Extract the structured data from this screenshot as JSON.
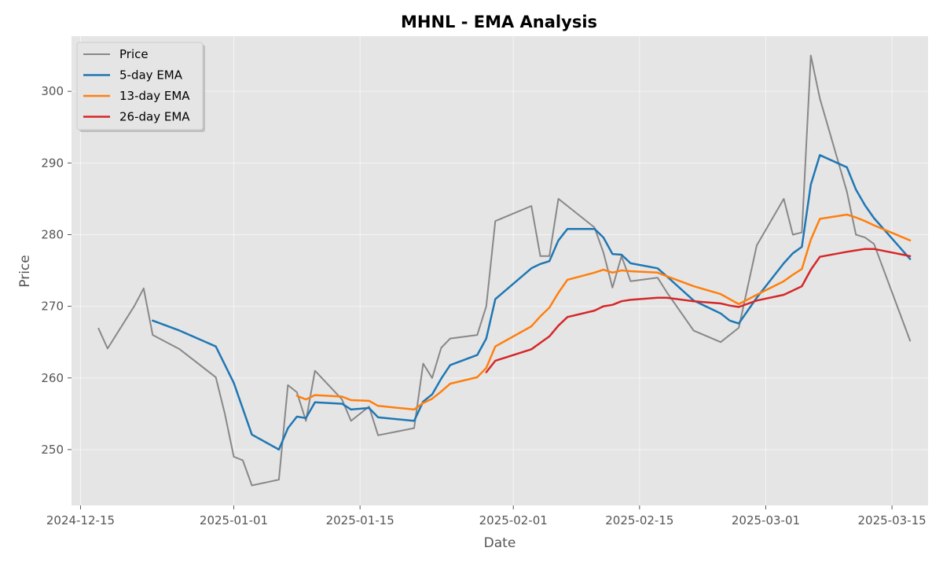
{
  "chart_data": {
    "type": "line",
    "title": "MHNL - EMA Analysis",
    "xlabel": "Date",
    "ylabel": "Price",
    "x_type": "date",
    "xlim": [
      "2024-12-14",
      "2025-03-19"
    ],
    "ylim": [
      242.2,
      307.7
    ],
    "x_ticks": [
      "2024-12-15",
      "2025-01-01",
      "2025-01-15",
      "2025-02-01",
      "2025-02-15",
      "2025-03-01",
      "2025-03-15"
    ],
    "x_tick_labels": [
      "2024-12-15",
      "2025-01-01",
      "2025-01-15",
      "2025-02-01",
      "2025-02-15",
      "2025-03-01",
      "2025-03-15"
    ],
    "y_ticks": [
      250,
      260,
      270,
      280,
      290,
      300
    ],
    "y_tick_labels": [
      "250",
      "260",
      "270",
      "280",
      "290",
      "300"
    ],
    "grid": true,
    "background": "#e5e5e5",
    "legend": {
      "position": "upper-left"
    },
    "series": [
      {
        "name": "Price",
        "color": "#888888",
        "points": [
          [
            "2024-12-17",
            266.9
          ],
          [
            "2024-12-18",
            264.1
          ],
          [
            "2024-12-21",
            270.1
          ],
          [
            "2024-12-22",
            272.5
          ],
          [
            "2024-12-23",
            266.0
          ],
          [
            "2024-12-26",
            264.0
          ],
          [
            "2024-12-30",
            260.1
          ],
          [
            "2024-12-31",
            255.0
          ],
          [
            "2025-01-01",
            249.0
          ],
          [
            "2025-01-02",
            248.5
          ],
          [
            "2025-01-03",
            245.0
          ],
          [
            "2025-01-06",
            245.8
          ],
          [
            "2025-01-07",
            259.0
          ],
          [
            "2025-01-08",
            258.0
          ],
          [
            "2025-01-09",
            254.0
          ],
          [
            "2025-01-10",
            261.0
          ],
          [
            "2025-01-13",
            257.0
          ],
          [
            "2025-01-14",
            254.0
          ],
          [
            "2025-01-16",
            256.0
          ],
          [
            "2025-01-17",
            252.0
          ],
          [
            "2025-01-21",
            253.0
          ],
          [
            "2025-01-22",
            262.0
          ],
          [
            "2025-01-23",
            260.0
          ],
          [
            "2025-01-24",
            264.2
          ],
          [
            "2025-01-25",
            265.5
          ],
          [
            "2025-01-28",
            266.0
          ],
          [
            "2025-01-29",
            270.0
          ],
          [
            "2025-01-30",
            281.9
          ],
          [
            "2025-02-03",
            284.0
          ],
          [
            "2025-02-04",
            277.0
          ],
          [
            "2025-02-05",
            277.0
          ],
          [
            "2025-02-06",
            285.0
          ],
          [
            "2025-02-07",
            284.0
          ],
          [
            "2025-02-10",
            281.0
          ],
          [
            "2025-02-11",
            277.5
          ],
          [
            "2025-02-12",
            272.6
          ],
          [
            "2025-02-13",
            277.0
          ],
          [
            "2025-02-14",
            273.5
          ],
          [
            "2025-02-17",
            274.0
          ],
          [
            "2025-02-18",
            272.0
          ],
          [
            "2025-02-21",
            266.6
          ],
          [
            "2025-02-24",
            265.0
          ],
          [
            "2025-02-26",
            267.0
          ],
          [
            "2025-02-28",
            278.5
          ],
          [
            "2025-03-03",
            285.0
          ],
          [
            "2025-03-04",
            280.0
          ],
          [
            "2025-03-05",
            280.3
          ],
          [
            "2025-03-06",
            305.0
          ],
          [
            "2025-03-07",
            299.0
          ],
          [
            "2025-03-10",
            286.0
          ],
          [
            "2025-03-11",
            280.0
          ],
          [
            "2025-03-12",
            279.6
          ],
          [
            "2025-03-13",
            278.7
          ],
          [
            "2025-03-17",
            265.2
          ]
        ]
      },
      {
        "name": "5-day EMA",
        "color": "#1f77b4",
        "points": [
          [
            "2024-12-23",
            268.0
          ],
          [
            "2024-12-26",
            266.6
          ],
          [
            "2024-12-30",
            264.4
          ],
          [
            "2025-01-01",
            259.3
          ],
          [
            "2025-01-03",
            252.1
          ],
          [
            "2025-01-06",
            250.0
          ],
          [
            "2025-01-07",
            253.0
          ],
          [
            "2025-01-08",
            254.6
          ],
          [
            "2025-01-09",
            254.4
          ],
          [
            "2025-01-10",
            256.6
          ],
          [
            "2025-01-13",
            256.4
          ],
          [
            "2025-01-14",
            255.6
          ],
          [
            "2025-01-16",
            255.8
          ],
          [
            "2025-01-17",
            254.5
          ],
          [
            "2025-01-21",
            254.0
          ],
          [
            "2025-01-22",
            256.7
          ],
          [
            "2025-01-23",
            257.7
          ],
          [
            "2025-01-24",
            259.9
          ],
          [
            "2025-01-25",
            261.8
          ],
          [
            "2025-01-28",
            263.2
          ],
          [
            "2025-01-29",
            265.5
          ],
          [
            "2025-01-30",
            271.0
          ],
          [
            "2025-02-03",
            275.3
          ],
          [
            "2025-02-04",
            275.9
          ],
          [
            "2025-02-05",
            276.3
          ],
          [
            "2025-02-06",
            279.2
          ],
          [
            "2025-02-07",
            280.8
          ],
          [
            "2025-02-10",
            280.8
          ],
          [
            "2025-02-11",
            279.6
          ],
          [
            "2025-02-12",
            277.3
          ],
          [
            "2025-02-13",
            277.2
          ],
          [
            "2025-02-14",
            276.0
          ],
          [
            "2025-02-17",
            275.3
          ],
          [
            "2025-02-18",
            274.2
          ],
          [
            "2025-02-21",
            270.8
          ],
          [
            "2025-02-24",
            269.0
          ],
          [
            "2025-02-25",
            268.0
          ],
          [
            "2025-02-26",
            267.6
          ],
          [
            "2025-02-28",
            271.2
          ],
          [
            "2025-03-03",
            276.0
          ],
          [
            "2025-03-04",
            277.4
          ],
          [
            "2025-03-05",
            278.3
          ],
          [
            "2025-03-06",
            287.0
          ],
          [
            "2025-03-07",
            291.1
          ],
          [
            "2025-03-10",
            289.4
          ],
          [
            "2025-03-11",
            286.3
          ],
          [
            "2025-03-12",
            284.1
          ],
          [
            "2025-03-13",
            282.3
          ],
          [
            "2025-03-17",
            276.6
          ]
        ]
      },
      {
        "name": "13-day EMA",
        "color": "#ff7f0e",
        "points": [
          [
            "2025-01-08",
            257.5
          ],
          [
            "2025-01-09",
            257.0
          ],
          [
            "2025-01-10",
            257.6
          ],
          [
            "2025-01-13",
            257.4
          ],
          [
            "2025-01-14",
            256.9
          ],
          [
            "2025-01-16",
            256.8
          ],
          [
            "2025-01-17",
            256.1
          ],
          [
            "2025-01-21",
            255.6
          ],
          [
            "2025-01-22",
            256.5
          ],
          [
            "2025-01-23",
            257.1
          ],
          [
            "2025-01-24",
            258.1
          ],
          [
            "2025-01-25",
            259.2
          ],
          [
            "2025-01-28",
            260.1
          ],
          [
            "2025-01-29",
            261.4
          ],
          [
            "2025-01-30",
            264.4
          ],
          [
            "2025-02-03",
            267.2
          ],
          [
            "2025-02-04",
            268.6
          ],
          [
            "2025-02-05",
            269.8
          ],
          [
            "2025-02-06",
            271.9
          ],
          [
            "2025-02-07",
            273.7
          ],
          [
            "2025-02-10",
            274.7
          ],
          [
            "2025-02-11",
            275.1
          ],
          [
            "2025-02-12",
            274.7
          ],
          [
            "2025-02-13",
            275.0
          ],
          [
            "2025-02-14",
            274.9
          ],
          [
            "2025-02-17",
            274.7
          ],
          [
            "2025-02-18",
            274.2
          ],
          [
            "2025-02-21",
            272.8
          ],
          [
            "2025-02-24",
            271.7
          ],
          [
            "2025-02-26",
            270.3
          ],
          [
            "2025-02-28",
            271.6
          ],
          [
            "2025-03-03",
            273.5
          ],
          [
            "2025-03-04",
            274.4
          ],
          [
            "2025-03-05",
            275.2
          ],
          [
            "2025-03-06",
            279.3
          ],
          [
            "2025-03-07",
            282.2
          ],
          [
            "2025-03-10",
            282.8
          ],
          [
            "2025-03-11",
            282.4
          ],
          [
            "2025-03-12",
            281.9
          ],
          [
            "2025-03-13",
            281.3
          ],
          [
            "2025-03-17",
            279.2
          ]
        ]
      },
      {
        "name": "26-day EMA",
        "color": "#d62728",
        "points": [
          [
            "2025-01-29",
            260.8
          ],
          [
            "2025-01-30",
            262.4
          ],
          [
            "2025-02-03",
            264.0
          ],
          [
            "2025-02-04",
            264.9
          ],
          [
            "2025-02-05",
            265.8
          ],
          [
            "2025-02-06",
            267.3
          ],
          [
            "2025-02-07",
            268.5
          ],
          [
            "2025-02-10",
            269.4
          ],
          [
            "2025-02-11",
            270.0
          ],
          [
            "2025-02-12",
            270.2
          ],
          [
            "2025-02-13",
            270.7
          ],
          [
            "2025-02-14",
            270.9
          ],
          [
            "2025-02-17",
            271.2
          ],
          [
            "2025-02-18",
            271.2
          ],
          [
            "2025-02-21",
            270.7
          ],
          [
            "2025-02-24",
            270.4
          ],
          [
            "2025-02-25",
            270.1
          ],
          [
            "2025-02-26",
            269.9
          ],
          [
            "2025-02-28",
            270.8
          ],
          [
            "2025-03-03",
            271.6
          ],
          [
            "2025-03-04",
            272.2
          ],
          [
            "2025-03-05",
            272.8
          ],
          [
            "2025-03-06",
            275.1
          ],
          [
            "2025-03-07",
            276.9
          ],
          [
            "2025-03-10",
            277.6
          ],
          [
            "2025-03-11",
            277.8
          ],
          [
            "2025-03-12",
            278.0
          ],
          [
            "2025-03-13",
            278.0
          ],
          [
            "2025-03-17",
            277.0
          ]
        ]
      }
    ]
  }
}
